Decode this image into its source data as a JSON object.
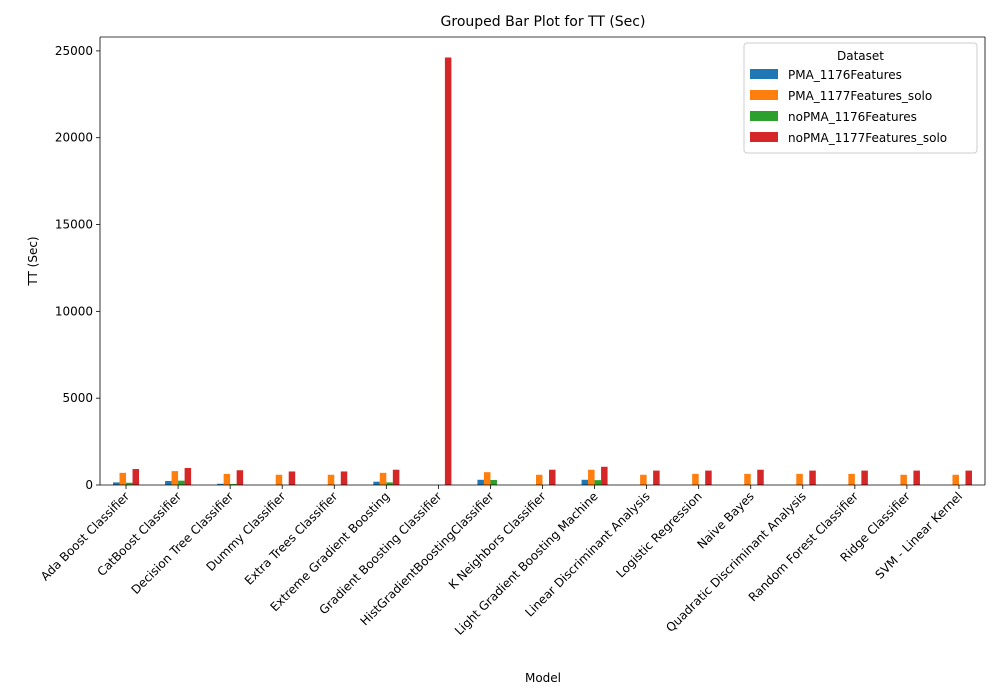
{
  "chart_data": {
    "type": "bar",
    "title": "Grouped Bar Plot for TT (Sec)",
    "xlabel": "Model",
    "ylabel": "TT (Sec)",
    "ylim": [
      0,
      25800
    ],
    "yticks": [
      0,
      5000,
      10000,
      15000,
      20000,
      25000
    ],
    "grid": false,
    "legend": {
      "title": "Dataset",
      "placement": "top-right"
    },
    "categories": [
      "Ada Boost Classifier",
      "CatBoost Classifier",
      "Decision Tree Classifier",
      "Dummy Classifier",
      "Extra Trees Classifier",
      "Extreme Gradient Boosting",
      "Gradient Boosting Classifier",
      "HistGradientBoostingClassifier",
      "K Neighbors Classifier",
      "Light Gradient Boosting Machine",
      "Linear Discriminant Analysis",
      "Logistic Regression",
      "Naive Bayes",
      "Quadratic Discriminant Analysis",
      "Random Forest Classifier",
      "Ridge Classifier",
      "SVM - Linear Kernel"
    ],
    "series": [
      {
        "name": "PMA_1176Features",
        "color": "#1f77b4",
        "values": [
          150,
          230,
          70,
          0,
          0,
          190,
          0,
          300,
          0,
          300,
          0,
          0,
          0,
          0,
          0,
          0,
          0
        ]
      },
      {
        "name": "PMA_1177Features_solo",
        "color": "#ff7f0e",
        "values": [
          700,
          800,
          640,
          590,
          590,
          700,
          0,
          740,
          590,
          880,
          590,
          640,
          640,
          640,
          640,
          590,
          590
        ]
      },
      {
        "name": "noPMA_1176Features",
        "color": "#2ca02c",
        "values": [
          130,
          250,
          60,
          0,
          0,
          150,
          0,
          290,
          0,
          280,
          0,
          0,
          0,
          0,
          0,
          0,
          0
        ]
      },
      {
        "name": "noPMA_1177Features_solo",
        "color": "#d62728",
        "values": [
          920,
          980,
          850,
          780,
          780,
          880,
          24620,
          0,
          880,
          1050,
          830,
          830,
          880,
          830,
          830,
          830,
          830
        ]
      }
    ]
  }
}
